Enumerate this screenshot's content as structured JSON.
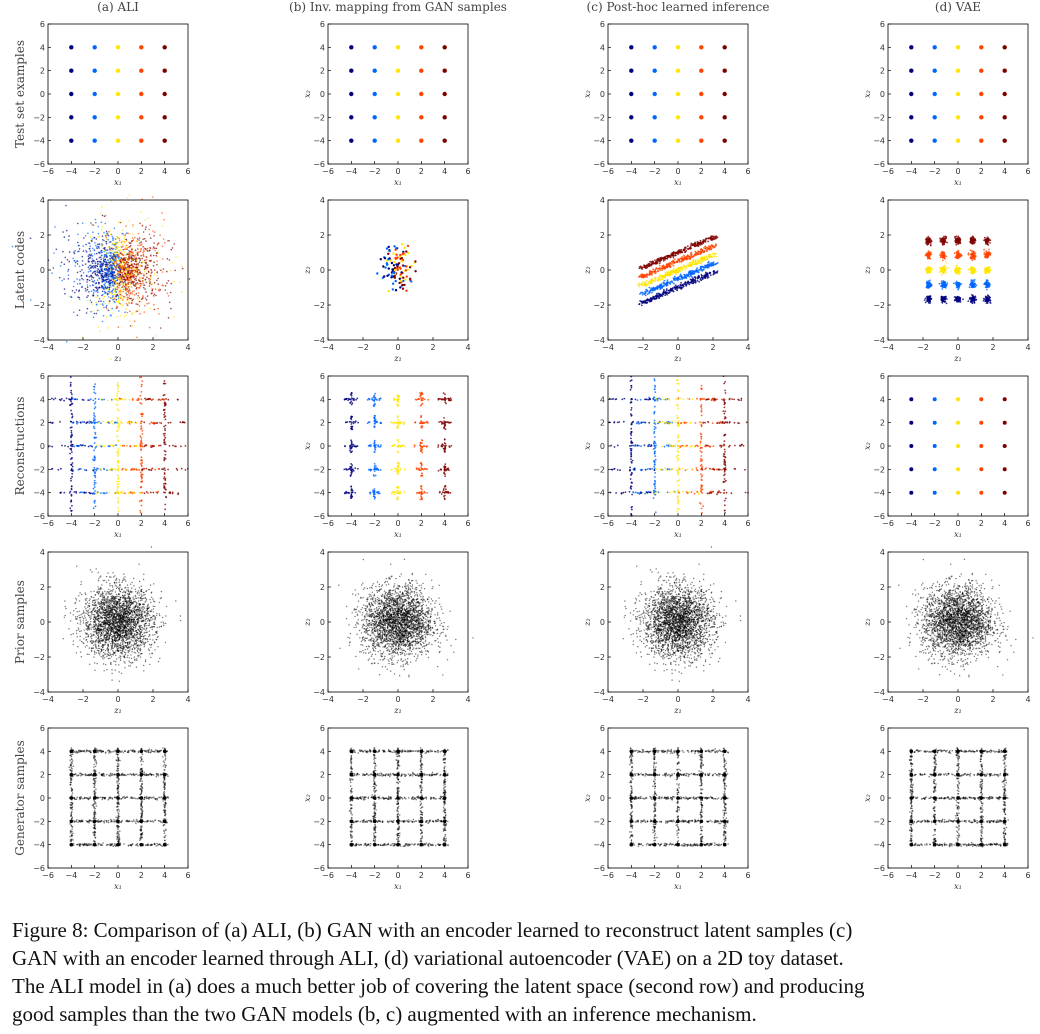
{
  "columns": [
    {
      "title": "(a) ALI"
    },
    {
      "title": "(b) Inv. mapping from GAN samples"
    },
    {
      "title": "(c) Post-hoc learned inference"
    },
    {
      "title": "(d) VAE"
    }
  ],
  "rows": [
    {
      "label": "Test set examples",
      "kind": "grid25",
      "xlabel": "x₁",
      "ylabel": "x₂",
      "xlim": [
        -6,
        6
      ],
      "ylim": [
        -6,
        6
      ],
      "xticks": [
        "−6",
        "−4",
        "−2",
        "0",
        "2",
        "4",
        "6"
      ],
      "yticks": [
        "−6",
        "−4",
        "−2",
        "0",
        "2",
        "4",
        "6"
      ]
    },
    {
      "label": "Latent codes",
      "kind": "latent",
      "xlabel": "z₁",
      "ylabel": "z₂",
      "xlim": [
        -4,
        4
      ],
      "ylim": [
        -4,
        4
      ],
      "xticks": [
        "−4",
        "−2",
        "0",
        "2",
        "4"
      ],
      "yticks": [
        "−4",
        "−2",
        "0",
        "2",
        "4"
      ]
    },
    {
      "label": "Reconstructions",
      "kind": "recon",
      "xlabel": "x₁",
      "ylabel": "x₂",
      "xlim": [
        -6,
        6
      ],
      "ylim": [
        -6,
        6
      ],
      "xticks": [
        "−6",
        "−4",
        "−2",
        "0",
        "2",
        "4",
        "6"
      ],
      "yticks": [
        "−6",
        "−4",
        "−2",
        "0",
        "2",
        "4",
        "6"
      ]
    },
    {
      "label": "Prior samples",
      "kind": "prior",
      "xlabel": "z₁",
      "ylabel": "z₂",
      "xlim": [
        -4,
        4
      ],
      "ylim": [
        -4,
        4
      ],
      "xticks": [
        "−4",
        "−2",
        "0",
        "2",
        "4"
      ],
      "yticks": [
        "−4",
        "−2",
        "0",
        "2",
        "4"
      ]
    },
    {
      "label": "Generator samples",
      "kind": "gen",
      "xlabel": "x₁",
      "ylabel": "x₂",
      "xlim": [
        -6,
        6
      ],
      "ylim": [
        -6,
        6
      ],
      "xticks": [
        "−6",
        "−4",
        "−2",
        "0",
        "2",
        "4",
        "6"
      ],
      "yticks": [
        "−6",
        "−4",
        "−2",
        "0",
        "2",
        "4",
        "6"
      ]
    }
  ],
  "colormap": [
    "#00007f",
    "#0066ff",
    "#22ffd4",
    "#ffe500",
    "#ff4400",
    "#7f0000"
  ],
  "chart_data": {
    "type": "scatter",
    "grid_points_x": [
      -4,
      -2,
      0,
      2,
      4
    ],
    "grid_points_y": [
      -4,
      -2,
      0,
      2,
      4
    ],
    "grid": false
  },
  "caption": {
    "line1": "Figure 8:  Comparison of (a) ALI, (b) GAN with an encoder learned to reconstruct latent samples (c)",
    "line2": "GAN with an encoder learned through ALI, (d) variational autoencoder (VAE) on a 2D toy dataset.",
    "line3": "The ALI model in (a) does a much better job of covering the latent space (second row) and producing",
    "line4": "good samples than the two GAN models (b, c) augmented with an inference mechanism."
  }
}
